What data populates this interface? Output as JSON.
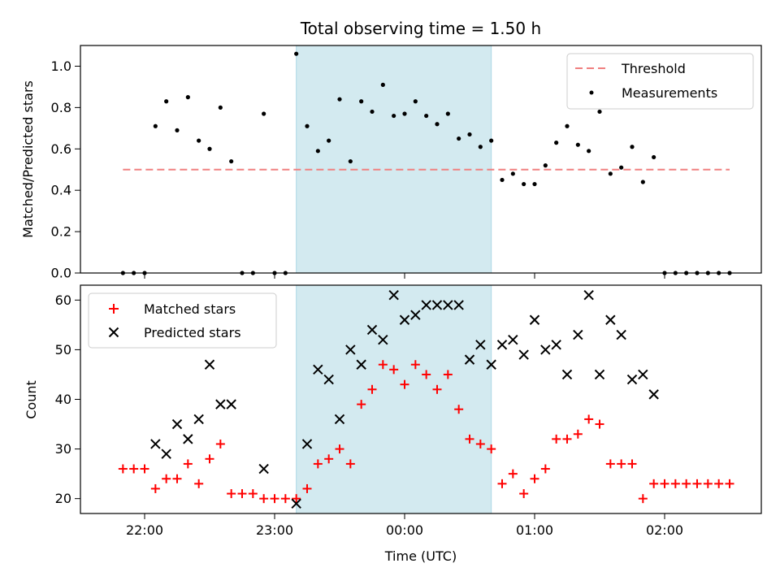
{
  "chart_data": [
    {
      "type": "scatter",
      "title": "Total observing time = 1.50 h",
      "xlabel": "",
      "ylabel": "Matched/Predicted stars",
      "ylim": [
        0,
        1.1
      ],
      "yticks": [
        "0.0",
        "0.2",
        "0.4",
        "0.6",
        "0.8",
        "1.0"
      ],
      "shaded_span": [
        "23:10",
        "00:40"
      ],
      "shaded_color": "#d3eaf0",
      "legend_position": "upper right",
      "threshold": {
        "name": "Threshold",
        "value": 0.5,
        "x_start": "21:50",
        "x_end": "02:30",
        "color": "#f08080"
      },
      "series": [
        {
          "name": "Measurements",
          "color": "#000000",
          "points": [
            [
              "21:50",
              0
            ],
            [
              "21:55",
              0
            ],
            [
              "22:00",
              0
            ],
            [
              "22:05",
              0.71
            ],
            [
              "22:10",
              0.83
            ],
            [
              "22:15",
              0.69
            ],
            [
              "22:20",
              0.85
            ],
            [
              "22:25",
              0.64
            ],
            [
              "22:30",
              0.6
            ],
            [
              "22:35",
              0.8
            ],
            [
              "22:40",
              0.54
            ],
            [
              "22:45",
              0
            ],
            [
              "22:50",
              0
            ],
            [
              "22:55",
              0.77
            ],
            [
              "23:00",
              0
            ],
            [
              "23:05",
              0
            ],
            [
              "23:10",
              1.06
            ],
            [
              "23:15",
              0.71
            ],
            [
              "23:20",
              0.59
            ],
            [
              "23:25",
              0.64
            ],
            [
              "23:30",
              0.84
            ],
            [
              "23:35",
              0.54
            ],
            [
              "23:40",
              0.83
            ],
            [
              "23:45",
              0.78
            ],
            [
              "23:50",
              0.91
            ],
            [
              "23:55",
              0.76
            ],
            [
              "00:00",
              0.77
            ],
            [
              "00:05",
              0.83
            ],
            [
              "00:10",
              0.76
            ],
            [
              "00:15",
              0.72
            ],
            [
              "00:20",
              0.77
            ],
            [
              "00:25",
              0.65
            ],
            [
              "00:30",
              0.67
            ],
            [
              "00:35",
              0.61
            ],
            [
              "00:40",
              0.64
            ],
            [
              "00:45",
              0.45
            ],
            [
              "00:50",
              0.48
            ],
            [
              "00:55",
              0.43
            ],
            [
              "01:00",
              0.43
            ],
            [
              "01:05",
              0.52
            ],
            [
              "01:10",
              0.63
            ],
            [
              "01:15",
              0.71
            ],
            [
              "01:20",
              0.62
            ],
            [
              "01:25",
              0.59
            ],
            [
              "01:30",
              0.78
            ],
            [
              "01:35",
              0.48
            ],
            [
              "01:40",
              0.51
            ],
            [
              "01:45",
              0.61
            ],
            [
              "01:50",
              0.44
            ],
            [
              "01:55",
              0.56
            ],
            [
              "02:00",
              0
            ],
            [
              "02:05",
              0
            ],
            [
              "02:10",
              0
            ],
            [
              "02:15",
              0
            ],
            [
              "02:20",
              0
            ],
            [
              "02:25",
              0
            ],
            [
              "02:30",
              0
            ]
          ]
        }
      ]
    },
    {
      "type": "scatter",
      "title": "",
      "xlabel": "Time (UTC)",
      "ylabel": "Count",
      "ylim": [
        17,
        63
      ],
      "yticks": [
        "20",
        "30",
        "40",
        "50",
        "60"
      ],
      "xticks": [
        "22:00",
        "23:00",
        "00:00",
        "01:00",
        "02:00"
      ],
      "shaded_span": [
        "23:10",
        "00:40"
      ],
      "shaded_color": "#d3eaf0",
      "legend_position": "upper left",
      "series": [
        {
          "name": "Matched stars",
          "color": "#ff0000",
          "marker": "plus",
          "points": [
            [
              "21:50",
              26
            ],
            [
              "21:55",
              26
            ],
            [
              "22:00",
              26
            ],
            [
              "22:05",
              22
            ],
            [
              "22:10",
              24
            ],
            [
              "22:15",
              24
            ],
            [
              "22:20",
              27
            ],
            [
              "22:25",
              23
            ],
            [
              "22:30",
              28
            ],
            [
              "22:35",
              31
            ],
            [
              "22:40",
              21
            ],
            [
              "22:45",
              21
            ],
            [
              "22:50",
              21
            ],
            [
              "22:55",
              20
            ],
            [
              "23:00",
              20
            ],
            [
              "23:05",
              20
            ],
            [
              "23:10",
              20
            ],
            [
              "23:15",
              22
            ],
            [
              "23:20",
              27
            ],
            [
              "23:25",
              28
            ],
            [
              "23:30",
              30
            ],
            [
              "23:35",
              27
            ],
            [
              "23:40",
              39
            ],
            [
              "23:45",
              42
            ],
            [
              "23:50",
              47
            ],
            [
              "23:55",
              46
            ],
            [
              "00:00",
              43
            ],
            [
              "00:05",
              47
            ],
            [
              "00:10",
              45
            ],
            [
              "00:15",
              42
            ],
            [
              "00:20",
              45
            ],
            [
              "00:25",
              38
            ],
            [
              "00:30",
              32
            ],
            [
              "00:35",
              31
            ],
            [
              "00:40",
              30
            ],
            [
              "00:45",
              23
            ],
            [
              "00:50",
              25
            ],
            [
              "00:55",
              21
            ],
            [
              "01:00",
              24
            ],
            [
              "01:05",
              26
            ],
            [
              "01:10",
              32
            ],
            [
              "01:15",
              32
            ],
            [
              "01:20",
              33
            ],
            [
              "01:25",
              36
            ],
            [
              "01:30",
              35
            ],
            [
              "01:35",
              27
            ],
            [
              "01:40",
              27
            ],
            [
              "01:45",
              27
            ],
            [
              "01:50",
              20
            ],
            [
              "01:55",
              23
            ],
            [
              "02:00",
              23
            ],
            [
              "02:05",
              23
            ],
            [
              "02:10",
              23
            ],
            [
              "02:15",
              23
            ],
            [
              "02:20",
              23
            ],
            [
              "02:25",
              23
            ],
            [
              "02:30",
              23
            ]
          ]
        },
        {
          "name": "Predicted stars",
          "color": "#000000",
          "marker": "x",
          "points": [
            [
              "22:05",
              31
            ],
            [
              "22:10",
              29
            ],
            [
              "22:15",
              35
            ],
            [
              "22:20",
              32
            ],
            [
              "22:25",
              36
            ],
            [
              "22:30",
              47
            ],
            [
              "22:35",
              39
            ],
            [
              "22:40",
              39
            ],
            [
              "22:55",
              26
            ],
            [
              "23:10",
              19
            ],
            [
              "23:15",
              31
            ],
            [
              "23:20",
              46
            ],
            [
              "23:25",
              44
            ],
            [
              "23:30",
              36
            ],
            [
              "23:35",
              50
            ],
            [
              "23:40",
              47
            ],
            [
              "23:45",
              54
            ],
            [
              "23:50",
              52
            ],
            [
              "23:55",
              61
            ],
            [
              "00:00",
              56
            ],
            [
              "00:05",
              57
            ],
            [
              "00:10",
              59
            ],
            [
              "00:15",
              59
            ],
            [
              "00:20",
              59
            ],
            [
              "00:25",
              59
            ],
            [
              "00:30",
              48
            ],
            [
              "00:35",
              51
            ],
            [
              "00:40",
              47
            ],
            [
              "00:45",
              51
            ],
            [
              "00:50",
              52
            ],
            [
              "00:55",
              49
            ],
            [
              "01:00",
              56
            ],
            [
              "01:05",
              50
            ],
            [
              "01:10",
              51
            ],
            [
              "01:15",
              45
            ],
            [
              "01:20",
              53
            ],
            [
              "01:25",
              61
            ],
            [
              "01:30",
              45
            ],
            [
              "01:35",
              56
            ],
            [
              "01:40",
              53
            ],
            [
              "01:45",
              44
            ],
            [
              "01:50",
              45
            ],
            [
              "01:55",
              41
            ]
          ]
        }
      ]
    }
  ]
}
